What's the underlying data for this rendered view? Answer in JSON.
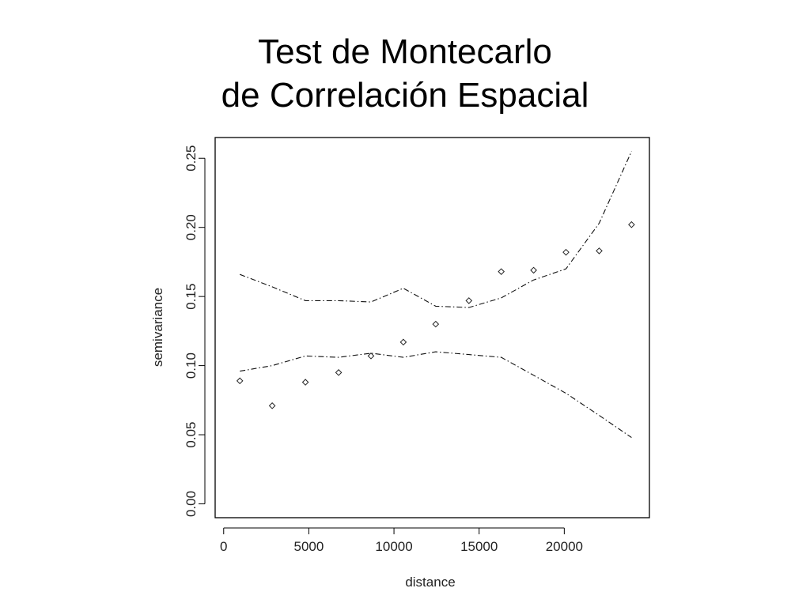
{
  "title": {
    "line1": "Test de Montecarlo",
    "line2": "de Correlación Espacial"
  },
  "chart_data": {
    "type": "scatter",
    "xlabel": "distance",
    "ylabel": "semivariance",
    "xlim": [
      -500,
      25000
    ],
    "ylim": [
      -0.01,
      0.265
    ],
    "x_ticks": [
      0,
      5000,
      10000,
      15000,
      20000
    ],
    "x_tick_labels": [
      "0",
      "5000",
      "10000",
      "15000",
      "20000"
    ],
    "y_ticks": [
      0.0,
      0.05,
      0.1,
      0.15,
      0.2,
      0.25
    ],
    "y_tick_labels": [
      "0.00",
      "0.05",
      "0.10",
      "0.15",
      "0.20",
      "0.25"
    ],
    "grid": false,
    "series": [
      {
        "kind": "points",
        "marker": "diamond",
        "x": [
          950,
          2850,
          4800,
          6750,
          8650,
          10550,
          12450,
          14400,
          16300,
          18200,
          20100,
          22050,
          23950
        ],
        "y": [
          0.089,
          0.071,
          0.088,
          0.095,
          0.107,
          0.117,
          0.13,
          0.147,
          0.168,
          0.169,
          0.182,
          0.183,
          0.202
        ]
      },
      {
        "kind": "envelope-upper",
        "style": "dash-dot",
        "x": [
          950,
          2850,
          4800,
          6750,
          8650,
          10550,
          12450,
          14400,
          16300,
          18200,
          20100,
          22050,
          23950
        ],
        "y": [
          0.166,
          0.157,
          0.147,
          0.147,
          0.146,
          0.156,
          0.143,
          0.142,
          0.149,
          0.162,
          0.17,
          0.203,
          0.255
        ]
      },
      {
        "kind": "envelope-lower",
        "style": "dash-dot",
        "x": [
          950,
          2850,
          4800,
          6750,
          8650,
          10550,
          12450,
          14400,
          16300,
          18200,
          20100,
          22050,
          23950
        ],
        "y": [
          0.096,
          0.1,
          0.107,
          0.106,
          0.109,
          0.106,
          0.11,
          0.108,
          0.106,
          0.093,
          0.08,
          0.064,
          0.048
        ]
      }
    ]
  }
}
